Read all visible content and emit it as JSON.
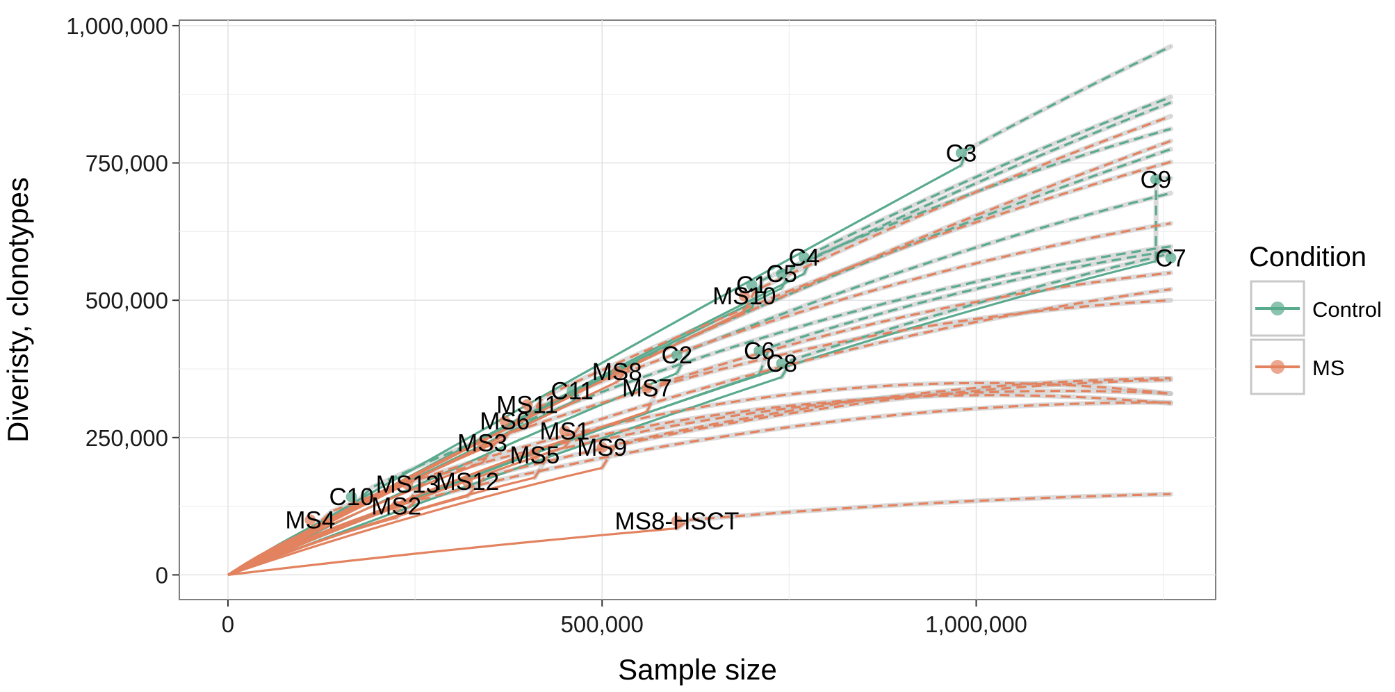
{
  "chart_data": {
    "type": "line",
    "xlabel": "Sample size",
    "ylabel": "Diveristy, clonotypes",
    "xlim": [
      -65000,
      1320000
    ],
    "ylim": [
      -45000,
      1010000
    ],
    "x_ticks": [
      0,
      500000,
      1000000
    ],
    "x_tick_labels": [
      "0",
      "500,000",
      "1,000,000"
    ],
    "y_ticks": [
      0,
      250000,
      500000,
      750000,
      1000000
    ],
    "y_tick_labels": [
      "0",
      "250,000",
      "500,000",
      "750,000",
      "1,000,000"
    ],
    "grid": true,
    "legend": {
      "title": "Condition",
      "position": "right",
      "entries": [
        {
          "label": "Control",
          "color": "#5aaa8e"
        },
        {
          "label": "MS",
          "color": "#e2825f"
        }
      ]
    },
    "colors": {
      "Control": "#5aaa8e",
      "MS": "#e2825f",
      "ci_band": "#bdbdbd",
      "panel_bg": "#ffffff",
      "grid": "#ececec"
    },
    "extrapolate_to": 1260000,
    "series": [
      {
        "name": "C3",
        "condition": "Control",
        "n": 980000,
        "d": 768000,
        "end": 962000
      },
      {
        "name": "C9",
        "condition": "Control",
        "n": 1240000,
        "d": 720000,
        "end": 722000
      },
      {
        "name": "C7",
        "condition": "Control",
        "n": 1260000,
        "d": 577000,
        "end": 577000
      },
      {
        "name": "C4",
        "condition": "Control",
        "n": 770000,
        "d": 578000,
        "end": 870000
      },
      {
        "name": "C5",
        "condition": "Control",
        "n": 740000,
        "d": 548000,
        "end": 860000
      },
      {
        "name": "C1",
        "condition": "Control",
        "n": 700000,
        "d": 528000,
        "end": 812000
      },
      {
        "name": "C2",
        "condition": "Control",
        "n": 600000,
        "d": 400000,
        "end": 695000
      },
      {
        "name": "C6",
        "condition": "Control",
        "n": 710000,
        "d": 408000,
        "end": 590000
      },
      {
        "name": "C8",
        "condition": "Control",
        "n": 740000,
        "d": 385000,
        "end": 585000
      },
      {
        "name": "C11",
        "condition": "Control",
        "n": 460000,
        "d": 335000,
        "end": 775000
      },
      {
        "name": "C10",
        "condition": "Control",
        "n": 165000,
        "d": 142000,
        "end": 598000
      },
      {
        "name": "MS10",
        "condition": "MS",
        "n": 690000,
        "d": 508000,
        "end": 835000
      },
      {
        "name": "MS8",
        "condition": "MS",
        "n": 520000,
        "d": 370000,
        "end": 790000
      },
      {
        "name": "MS11",
        "condition": "MS",
        "n": 400000,
        "d": 310000,
        "end": 752000
      },
      {
        "name": "MS6",
        "condition": "MS",
        "n": 370000,
        "d": 280000,
        "end": 640000
      },
      {
        "name": "MS7",
        "condition": "MS",
        "n": 560000,
        "d": 340000,
        "end": 550000
      },
      {
        "name": "MS3",
        "condition": "MS",
        "n": 340000,
        "d": 240000,
        "end": 500000
      },
      {
        "name": "MS1",
        "condition": "MS",
        "n": 450000,
        "d": 262000,
        "end": 520000
      },
      {
        "name": "MS9",
        "condition": "MS",
        "n": 500000,
        "d": 232000,
        "end": 358000
      },
      {
        "name": "MS5",
        "condition": "MS",
        "n": 410000,
        "d": 218000,
        "end": 330000
      },
      {
        "name": "MS12",
        "condition": "MS",
        "n": 320000,
        "d": 170000,
        "end": 355000
      },
      {
        "name": "MS13",
        "condition": "MS",
        "n": 240000,
        "d": 165000,
        "end": 312000
      },
      {
        "name": "MS2",
        "condition": "MS",
        "n": 225000,
        "d": 125000,
        "end": 314000
      },
      {
        "name": "MS4",
        "condition": "MS",
        "n": 110000,
        "d": 100000,
        "end": 330000
      },
      {
        "name": "MS8-HSCT",
        "condition": "MS",
        "n": 600000,
        "d": 98000,
        "end": 147000
      }
    ]
  }
}
